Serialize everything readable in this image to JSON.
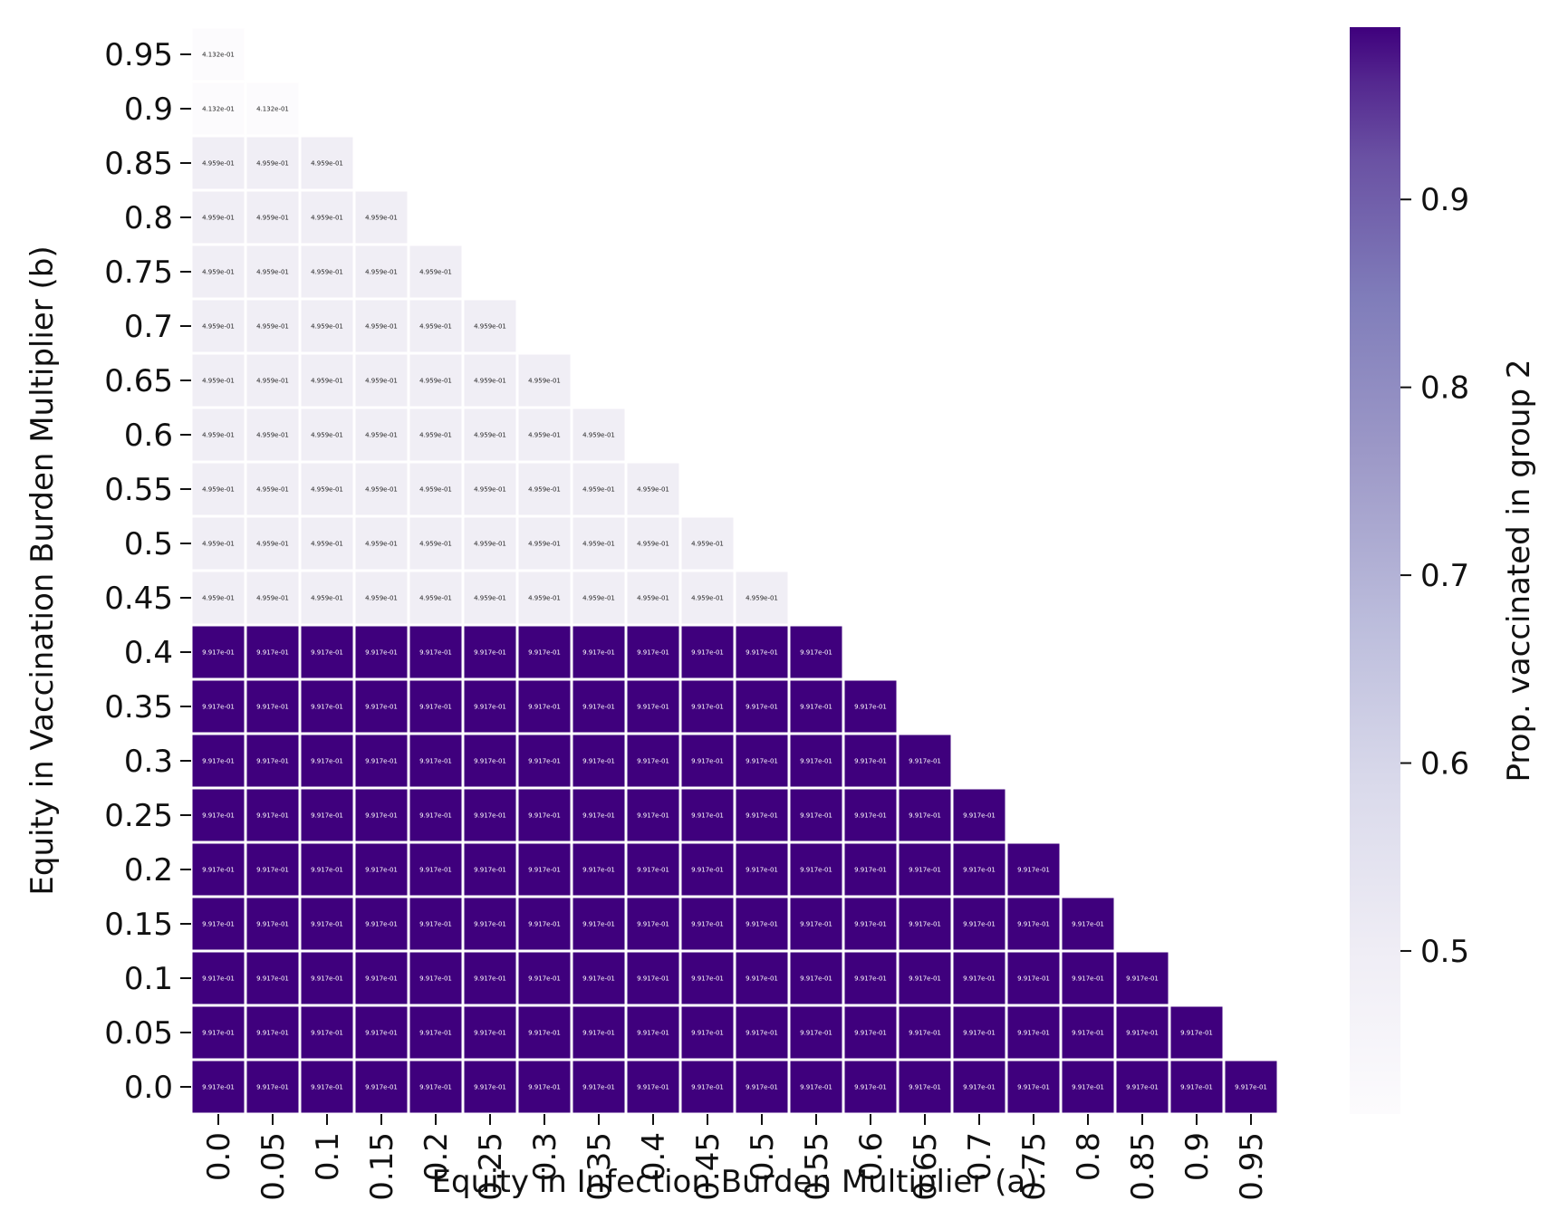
{
  "chart_data": {
    "type": "heatmap",
    "title": "",
    "xlabel": "Equity in Infection Burden Multiplier (a)",
    "ylabel": "Equity in Vaccination Burden Multiplier (b)",
    "x_tick_labels": [
      "0.0",
      "0.05",
      "0.1",
      "0.15",
      "0.2",
      "0.25",
      "0.3",
      "0.35",
      "0.4",
      "0.45",
      "0.5",
      "0.55",
      "0.6",
      "0.65",
      "0.7",
      "0.75",
      "0.8",
      "0.85",
      "0.9",
      "0.95"
    ],
    "y_tick_labels": [
      "0.0",
      "0.05",
      "0.1",
      "0.15",
      "0.2",
      "0.25",
      "0.3",
      "0.35",
      "0.4",
      "0.45",
      "0.5",
      "0.55",
      "0.6",
      "0.65",
      "0.7",
      "0.75",
      "0.8",
      "0.85",
      "0.9",
      "0.95"
    ],
    "mask": "upper triangle masked: only cells where a + b <= 0.95 are shown",
    "rows": [
      {
        "b": "0.95",
        "cells": [
          "4.132e-01"
        ]
      },
      {
        "b": "0.9",
        "cells": [
          "4.132e-01",
          "4.132e-01"
        ]
      },
      {
        "b": "0.85",
        "cells": [
          "4.959e-01",
          "4.959e-01",
          "4.959e-01"
        ]
      },
      {
        "b": "0.8",
        "cells": [
          "4.959e-01",
          "4.959e-01",
          "4.959e-01",
          "4.959e-01"
        ]
      },
      {
        "b": "0.75",
        "cells": [
          "4.959e-01",
          "4.959e-01",
          "4.959e-01",
          "4.959e-01",
          "4.959e-01"
        ]
      },
      {
        "b": "0.7",
        "cells": [
          "4.959e-01",
          "4.959e-01",
          "4.959e-01",
          "4.959e-01",
          "4.959e-01",
          "4.959e-01"
        ]
      },
      {
        "b": "0.65",
        "cells": [
          "4.959e-01",
          "4.959e-01",
          "4.959e-01",
          "4.959e-01",
          "4.959e-01",
          "4.959e-01",
          "4.959e-01"
        ]
      },
      {
        "b": "0.6",
        "cells": [
          "4.959e-01",
          "4.959e-01",
          "4.959e-01",
          "4.959e-01",
          "4.959e-01",
          "4.959e-01",
          "4.959e-01",
          "4.959e-01"
        ]
      },
      {
        "b": "0.55",
        "cells": [
          "4.959e-01",
          "4.959e-01",
          "4.959e-01",
          "4.959e-01",
          "4.959e-01",
          "4.959e-01",
          "4.959e-01",
          "4.959e-01",
          "4.959e-01"
        ]
      },
      {
        "b": "0.5",
        "cells": [
          "4.959e-01",
          "4.959e-01",
          "4.959e-01",
          "4.959e-01",
          "4.959e-01",
          "4.959e-01",
          "4.959e-01",
          "4.959e-01",
          "4.959e-01",
          "4.959e-01"
        ]
      },
      {
        "b": "0.45",
        "cells": [
          "4.959e-01",
          "4.959e-01",
          "4.959e-01",
          "4.959e-01",
          "4.959e-01",
          "4.959e-01",
          "4.959e-01",
          "4.959e-01",
          "4.959e-01",
          "4.959e-01",
          "4.959e-01"
        ]
      },
      {
        "b": "0.4",
        "cells": [
          "9.917e-01",
          "9.917e-01",
          "9.917e-01",
          "9.917e-01",
          "9.917e-01",
          "9.917e-01",
          "9.917e-01",
          "9.917e-01",
          "9.917e-01",
          "9.917e-01",
          "9.917e-01",
          "9.917e-01"
        ]
      },
      {
        "b": "0.35",
        "cells": [
          "9.917e-01",
          "9.917e-01",
          "9.917e-01",
          "9.917e-01",
          "9.917e-01",
          "9.917e-01",
          "9.917e-01",
          "9.917e-01",
          "9.917e-01",
          "9.917e-01",
          "9.917e-01",
          "9.917e-01",
          "9.917e-01"
        ]
      },
      {
        "b": "0.3",
        "cells": [
          "9.917e-01",
          "9.917e-01",
          "9.917e-01",
          "9.917e-01",
          "9.917e-01",
          "9.917e-01",
          "9.917e-01",
          "9.917e-01",
          "9.917e-01",
          "9.917e-01",
          "9.917e-01",
          "9.917e-01",
          "9.917e-01",
          "9.917e-01"
        ]
      },
      {
        "b": "0.25",
        "cells": [
          "9.917e-01",
          "9.917e-01",
          "9.917e-01",
          "9.917e-01",
          "9.917e-01",
          "9.917e-01",
          "9.917e-01",
          "9.917e-01",
          "9.917e-01",
          "9.917e-01",
          "9.917e-01",
          "9.917e-01",
          "9.917e-01",
          "9.917e-01",
          "9.917e-01"
        ]
      },
      {
        "b": "0.2",
        "cells": [
          "9.917e-01",
          "9.917e-01",
          "9.917e-01",
          "9.917e-01",
          "9.917e-01",
          "9.917e-01",
          "9.917e-01",
          "9.917e-01",
          "9.917e-01",
          "9.917e-01",
          "9.917e-01",
          "9.917e-01",
          "9.917e-01",
          "9.917e-01",
          "9.917e-01",
          "9.917e-01"
        ]
      },
      {
        "b": "0.15",
        "cells": [
          "9.917e-01",
          "9.917e-01",
          "9.917e-01",
          "9.917e-01",
          "9.917e-01",
          "9.917e-01",
          "9.917e-01",
          "9.917e-01",
          "9.917e-01",
          "9.917e-01",
          "9.917e-01",
          "9.917e-01",
          "9.917e-01",
          "9.917e-01",
          "9.917e-01",
          "9.917e-01",
          "9.917e-01"
        ]
      },
      {
        "b": "0.1",
        "cells": [
          "9.917e-01",
          "9.917e-01",
          "9.917e-01",
          "9.917e-01",
          "9.917e-01",
          "9.917e-01",
          "9.917e-01",
          "9.917e-01",
          "9.917e-01",
          "9.917e-01",
          "9.917e-01",
          "9.917e-01",
          "9.917e-01",
          "9.917e-01",
          "9.917e-01",
          "9.917e-01",
          "9.917e-01",
          "9.917e-01"
        ]
      },
      {
        "b": "0.05",
        "cells": [
          "9.917e-01",
          "9.917e-01",
          "9.917e-01",
          "9.917e-01",
          "9.917e-01",
          "9.917e-01",
          "9.917e-01",
          "9.917e-01",
          "9.917e-01",
          "9.917e-01",
          "9.917e-01",
          "9.917e-01",
          "9.917e-01",
          "9.917e-01",
          "9.917e-01",
          "9.917e-01",
          "9.917e-01",
          "9.917e-01",
          "9.917e-01"
        ]
      },
      {
        "b": "0.0",
        "cells": [
          "9.917e-01",
          "9.917e-01",
          "9.917e-01",
          "9.917e-01",
          "9.917e-01",
          "9.917e-01",
          "9.917e-01",
          "9.917e-01",
          "9.917e-01",
          "9.917e-01",
          "9.917e-01",
          "9.917e-01",
          "9.917e-01",
          "9.917e-01",
          "9.917e-01",
          "9.917e-01",
          "9.917e-01",
          "9.917e-01",
          "9.917e-01",
          "9.917e-01"
        ]
      }
    ],
    "colorbar": {
      "label": "Prop. vaccinated in group 2",
      "range": [
        0.4132,
        0.9917
      ],
      "ticks": [
        "0.5",
        "0.6",
        "0.7",
        "0.8",
        "0.9"
      ],
      "colormap": "Purples",
      "color_low": "#fcfbfd",
      "color_high": "#3f007d"
    },
    "grid": false,
    "legend": "colorbar-right"
  }
}
